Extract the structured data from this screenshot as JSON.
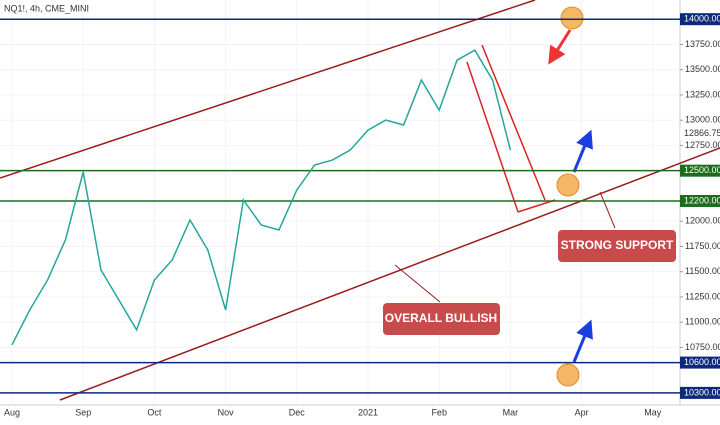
{
  "chart_data": {
    "type": "line",
    "title": "NQ1!, 4h, CME_MINI",
    "categories": [
      "Aug",
      null,
      null,
      null,
      "Sep",
      null,
      null,
      null,
      "Oct",
      null,
      null,
      null,
      "Nov",
      null,
      null,
      null,
      "Dec",
      null,
      null,
      null,
      "2021",
      null,
      null,
      null,
      "Feb",
      null,
      null,
      null,
      "Mar",
      null,
      null,
      null,
      "Apr",
      null,
      null,
      null,
      "May",
      null
    ],
    "series": [
      {
        "name": "NQ1!",
        "color": "#26a69a",
        "values": [
          10776,
          11122,
          11418,
          11814,
          12487,
          11517,
          11221,
          10924,
          11418,
          11616,
          12012,
          11715,
          11122,
          12210,
          11963,
          11913,
          12309,
          12556,
          12605,
          12704,
          12902,
          13001,
          12952,
          13397,
          13100,
          13594,
          13693,
          13397,
          12704,
          null,
          null,
          null,
          null,
          null,
          null,
          null,
          null,
          null
        ]
      }
    ],
    "ylim": [
      10180,
      14190
    ],
    "yticks": [
      {
        "value": 13750,
        "label": "13750.00"
      },
      {
        "value": 13500,
        "label": "13500.00"
      },
      {
        "value": 13250,
        "label": "13250.00"
      },
      {
        "value": 13000,
        "label": "13000.00"
      },
      {
        "value": 12750,
        "label": "12750.00"
      },
      {
        "value": 12000,
        "label": "12000.00"
      },
      {
        "value": 11750,
        "label": "11750.00"
      },
      {
        "value": 11500,
        "label": "11500.00"
      },
      {
        "value": 11250,
        "label": "11250.00"
      },
      {
        "value": 11000,
        "label": "11000.00"
      },
      {
        "value": 10750,
        "label": "10750.00"
      }
    ],
    "levels": [
      {
        "value": 14000,
        "label": "14000.00",
        "color": "#0d2a7a"
      },
      {
        "value": 12500,
        "label": "12500.00",
        "color": "#1e6b1e"
      },
      {
        "value": 12200,
        "label": "12200.00",
        "color": "#1e6b1e"
      },
      {
        "value": 10600,
        "label": "10600.00",
        "color": "#0d2a7a"
      },
      {
        "value": 10300,
        "label": "10300.00",
        "color": "#0d2a7a"
      }
    ],
    "last_price": {
      "value": 12866.75,
      "label": "12866.75"
    },
    "annotations": [
      "STRONG SUPPORT",
      "OVERALL BULLISH"
    ]
  }
}
